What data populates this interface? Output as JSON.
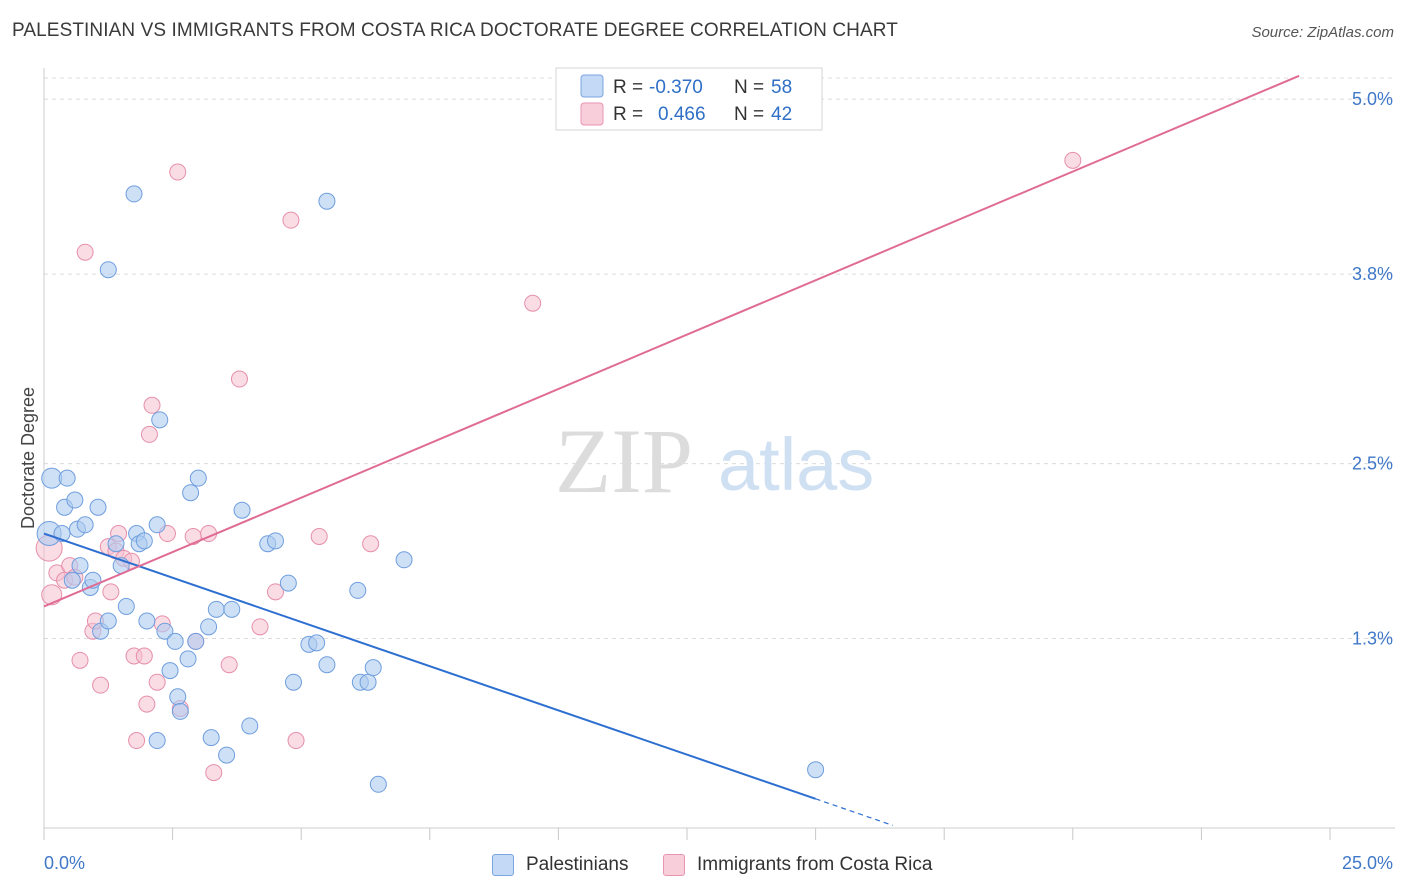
{
  "title": "PALESTINIAN VS IMMIGRANTS FROM COSTA RICA DOCTORATE DEGREE CORRELATION CHART",
  "source": "Source: ZipAtlas.com",
  "watermark": {
    "zip": "ZIP",
    "atlas": "atlas"
  },
  "legend": {
    "rows": [
      {
        "r_label": "R = ",
        "r_value": "-0.370",
        "n_label": "N = ",
        "n_value": "58"
      },
      {
        "r_label": "R = ",
        "r_value": "0.466",
        "n_label": "N = ",
        "n_value": "42"
      }
    ]
  },
  "bottom_legend": {
    "items": [
      "Palestinians",
      "Immigrants from Costa Rica"
    ]
  },
  "colors": {
    "blue_fill": "#aecbf0",
    "blue_stroke": "#6f9ede",
    "blue_line": "#2d6fd1",
    "pink_fill": "#f6bfd0",
    "pink_stroke": "#e68fab",
    "pink_line": "#e06b95",
    "tick_color": "#3f78c8",
    "grid": "#dcdcdc"
  },
  "chart_data": {
    "type": "scatter",
    "title": "PALESTINIAN VS IMMIGRANTS FROM COSTA RICA DOCTORATE DEGREE CORRELATION CHART",
    "xlabel": "",
    "ylabel": "Doctorate Degree",
    "xlim": [
      0,
      25
    ],
    "ylim": [
      0,
      5.2
    ],
    "x_tick_labels": [
      "0.0%",
      "25.0%"
    ],
    "y_ticks": [
      1.3,
      2.5,
      3.8,
      5.0
    ],
    "y_tick_labels": [
      "1.3%",
      "2.5%",
      "3.8%",
      "5.0%"
    ],
    "legend_position": "top-center",
    "series": [
      {
        "name": "Palestinians",
        "r": -0.37,
        "n": 58,
        "trend": {
          "x0": 0,
          "y0": 2.02,
          "x1": 15.0,
          "y1": 0.2,
          "dashed_to_x": 16.5
        },
        "points": [
          [
            0.1,
            2.02
          ],
          [
            0.15,
            2.4
          ],
          [
            0.4,
            2.2
          ],
          [
            0.35,
            2.02
          ],
          [
            0.45,
            2.4
          ],
          [
            0.55,
            1.7
          ],
          [
            0.6,
            2.25
          ],
          [
            0.65,
            2.05
          ],
          [
            0.7,
            1.8
          ],
          [
            0.8,
            2.08
          ],
          [
            0.9,
            1.65
          ],
          [
            0.95,
            1.7
          ],
          [
            1.05,
            2.2
          ],
          [
            1.1,
            1.35
          ],
          [
            1.25,
            1.42
          ],
          [
            1.4,
            1.95
          ],
          [
            1.5,
            1.8
          ],
          [
            1.6,
            1.52
          ],
          [
            1.75,
            4.35
          ],
          [
            1.25,
            3.83
          ],
          [
            1.8,
            2.02
          ],
          [
            1.85,
            1.95
          ],
          [
            1.95,
            1.97
          ],
          [
            2.0,
            1.42
          ],
          [
            2.2,
            0.6
          ],
          [
            2.2,
            2.08
          ],
          [
            2.25,
            2.8
          ],
          [
            2.35,
            1.35
          ],
          [
            2.45,
            1.08
          ],
          [
            2.55,
            1.28
          ],
          [
            2.6,
            0.9
          ],
          [
            2.65,
            0.8
          ],
          [
            2.8,
            1.16
          ],
          [
            2.85,
            2.3
          ],
          [
            2.95,
            1.28
          ],
          [
            3.0,
            2.4
          ],
          [
            3.2,
            1.38
          ],
          [
            3.25,
            0.62
          ],
          [
            3.35,
            1.5
          ],
          [
            3.55,
            0.5
          ],
          [
            3.65,
            1.5
          ],
          [
            3.85,
            2.18
          ],
          [
            4.0,
            0.7
          ],
          [
            4.35,
            1.95
          ],
          [
            4.5,
            1.97
          ],
          [
            4.75,
            1.68
          ],
          [
            4.85,
            1.0
          ],
          [
            5.15,
            1.26
          ],
          [
            5.3,
            1.27
          ],
          [
            5.5,
            1.12
          ],
          [
            6.1,
            1.63
          ],
          [
            6.15,
            1.0
          ],
          [
            6.3,
            1.0
          ],
          [
            6.4,
            1.1
          ],
          [
            6.5,
            0.3
          ],
          [
            7.0,
            1.84
          ],
          [
            15.0,
            0.4
          ],
          [
            5.5,
            4.3
          ]
        ]
      },
      {
        "name": "Immigrants from Costa Rica",
        "r": 0.466,
        "n": 42,
        "trend": {
          "x0": 0,
          "y0": 1.52,
          "x1": 24.4,
          "y1": 5.16
        },
        "points": [
          [
            0.1,
            1.92
          ],
          [
            0.15,
            1.6
          ],
          [
            0.25,
            1.75
          ],
          [
            0.4,
            1.7
          ],
          [
            0.5,
            1.8
          ],
          [
            0.6,
            1.72
          ],
          [
            0.7,
            1.15
          ],
          [
            0.8,
            3.95
          ],
          [
            0.95,
            1.35
          ],
          [
            1.0,
            1.42
          ],
          [
            1.1,
            0.98
          ],
          [
            1.25,
            1.93
          ],
          [
            1.3,
            1.62
          ],
          [
            1.4,
            1.9
          ],
          [
            1.45,
            2.02
          ],
          [
            1.55,
            1.85
          ],
          [
            1.7,
            1.83
          ],
          [
            1.75,
            1.18
          ],
          [
            1.8,
            0.6
          ],
          [
            1.95,
            1.18
          ],
          [
            2.0,
            0.85
          ],
          [
            2.05,
            2.7
          ],
          [
            2.1,
            2.9
          ],
          [
            2.2,
            1.0
          ],
          [
            2.3,
            1.4
          ],
          [
            2.4,
            2.02
          ],
          [
            2.6,
            4.5
          ],
          [
            2.65,
            0.82
          ],
          [
            2.9,
            2.0
          ],
          [
            2.95,
            1.28
          ],
          [
            3.2,
            2.02
          ],
          [
            3.3,
            0.38
          ],
          [
            3.6,
            1.12
          ],
          [
            3.8,
            3.08
          ],
          [
            4.2,
            1.38
          ],
          [
            4.5,
            1.62
          ],
          [
            4.8,
            4.17
          ],
          [
            4.9,
            0.6
          ],
          [
            5.35,
            2.0
          ],
          [
            6.35,
            1.95
          ],
          [
            9.5,
            3.6
          ],
          [
            20.0,
            4.58
          ]
        ]
      }
    ]
  }
}
